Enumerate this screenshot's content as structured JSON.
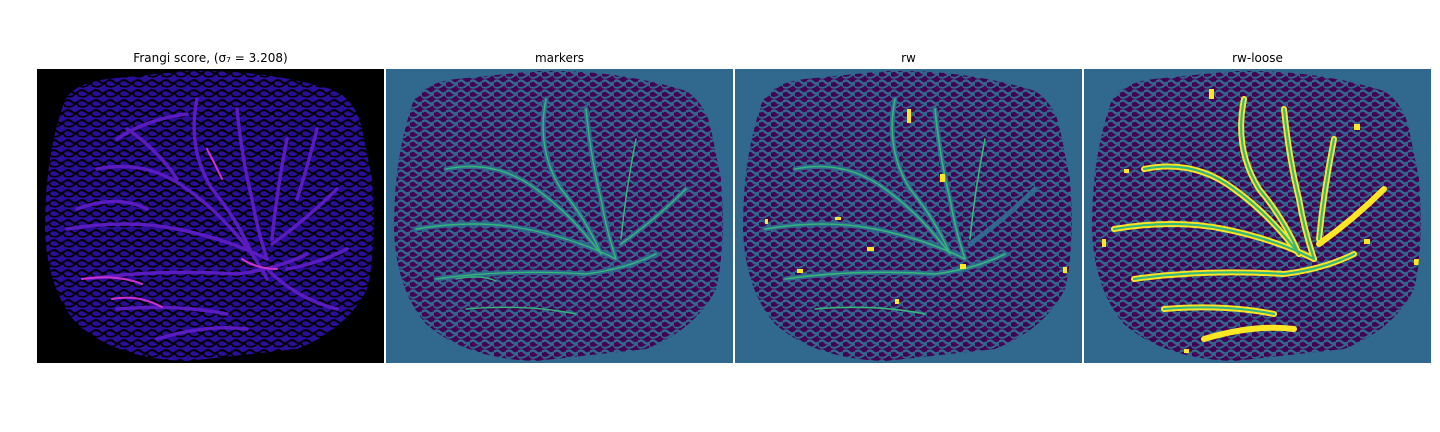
{
  "figure": {
    "panels": [
      {
        "id": "frangi",
        "title": "Frangi score, (σ₇ = 3.208)",
        "colormap": "plasma",
        "background": "#000000",
        "accent": "#b21fa8"
      },
      {
        "id": "markers",
        "title": "markers",
        "colormap": "viridis",
        "background": "#31688e",
        "accent": "#35b779"
      },
      {
        "id": "rw",
        "title": "rw",
        "colormap": "viridis",
        "background": "#31688e",
        "accent": "#fde725"
      },
      {
        "id": "rw-loose",
        "title": "rw-loose",
        "colormap": "viridis",
        "background": "#31688e",
        "accent": "#fde725"
      }
    ],
    "colors": {
      "viridis_dark": "#440154",
      "viridis_mid": "#31688e",
      "viridis_green": "#35b779",
      "viridis_yellow": "#fde725",
      "plasma_blue": "#2d0fb0",
      "plasma_magenta": "#cc33cc",
      "black": "#000000"
    }
  }
}
